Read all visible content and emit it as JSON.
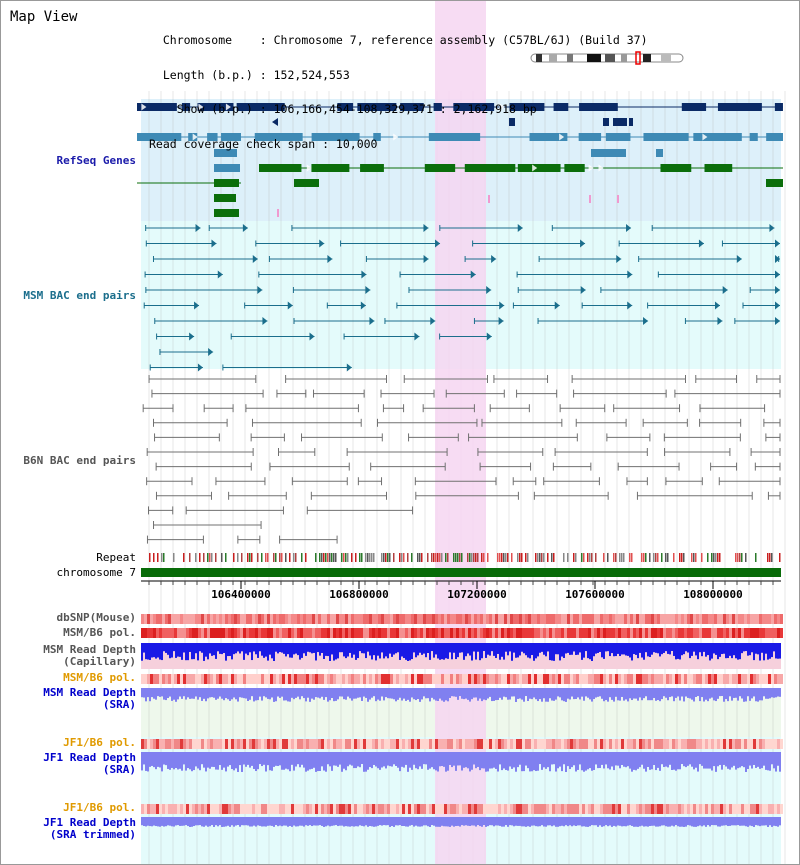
{
  "title": "Map View",
  "info_lines": [
    "  Chromosome    : Chromosome 7, reference assembly (C57BL/6J) (Build 37)",
    "  Length (b.p.) : 152,524,553",
    "    Show (b.p.) : 106,166,454-108,329,371 : 2,162,918 bp",
    "Read coverage check span : 10,000"
  ],
  "tracks": {
    "refseq": "RefSeq Genes",
    "msm_bac": "MSM BAC end pairs",
    "b6n_bac": "B6N BAC end pairs",
    "repeat": "Repeat",
    "chromosome": "chromosome 7",
    "dbsnp": "dbSNP(Mouse)",
    "msm_b6_pol": "MSM/B6 pol.",
    "msm_depth_cap": "MSM Read Depth\n(Capillary)",
    "msm_b6_pol2": "MSM/B6 pol.",
    "msm_depth_sra": "MSM Read Depth\n(SRA)",
    "jf1_b6_pol": "JF1/B6 pol.",
    "jf1_depth_sra": "JF1 Read Depth\n(SRA)",
    "jf1_b6_pol2": "JF1/B6 pol.",
    "jf1_depth_trim": "JF1 Read Depth\n(SRA trimmed)"
  },
  "axis": {
    "ticks": [
      "106400000",
      "106800000",
      "107200000",
      "107600000",
      "108000000"
    ]
  },
  "colors": {
    "navy": "#0a2a66",
    "refseq_blue": "#3e8ab5",
    "refseq_green": "#0b6e0b",
    "refseq_label": "#1a1aaa",
    "msm_line": "#1b6e8c",
    "msm_label": "#1b6e8c",
    "b6n_line": "#707070",
    "b6n_label": "#555555",
    "highlight": "#f6d6f1",
    "orange_label": "#e09a00",
    "blue_label": "#0000cc",
    "depth_dark": "#1a1ae6",
    "depth_light": "#8080f0",
    "chrom_green": "#086b08"
  }
}
